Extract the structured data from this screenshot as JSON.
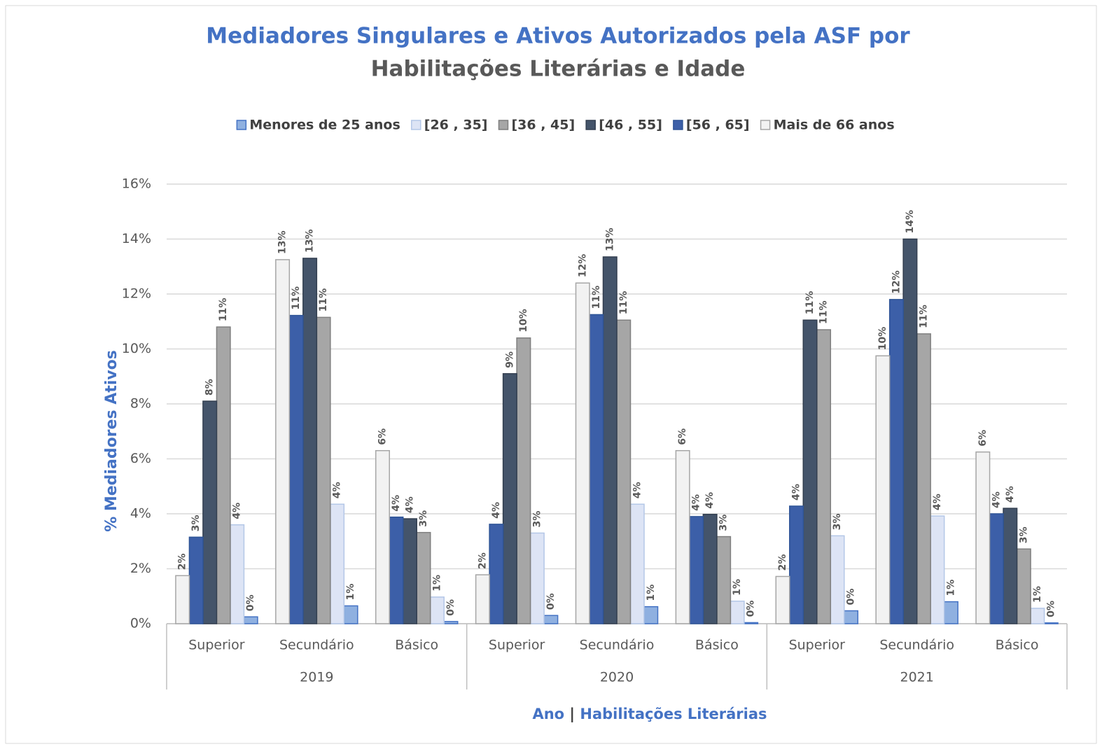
{
  "chart_data": {
    "type": "bar",
    "title": [
      "Mediadores Singulares e Ativos Autorizados pela ASF  por",
      "Habilitações Literárias e Idade"
    ],
    "y_label": "% Mediadores Ativos",
    "x_label": [
      "Ano",
      "|",
      "Habilitações Literárias"
    ],
    "categories": [
      "Superior",
      "Secundário",
      "Básico",
      "Superior",
      "Secundário",
      "Básico",
      "Superior",
      "Secundário",
      "Básico"
    ],
    "groups": [
      "2019",
      "2020",
      "2021"
    ],
    "ylim": [
      0,
      16
    ],
    "yticks": [
      {
        "value": 0,
        "label": "0%"
      },
      {
        "value": 2,
        "label": "2%"
      },
      {
        "value": 4,
        "label": "4%"
      },
      {
        "value": 6,
        "label": "6%"
      },
      {
        "value": 8,
        "label": "8%"
      },
      {
        "value": 10,
        "label": "10%"
      },
      {
        "value": 12,
        "label": "12%"
      },
      {
        "value": 14,
        "label": "14%"
      },
      {
        "value": 16,
        "label": "16%"
      }
    ],
    "grid": true,
    "legend": "top",
    "series": [
      {
        "name": "Menores de 25 anos",
        "color": "#8fb0e0",
        "edge": "#4472c4",
        "values": [
          0.25,
          0.65,
          0.08,
          0.3,
          0.62,
          0.04,
          0.47,
          0.8,
          0.03
        ],
        "value_labels": [
          "0%",
          "1%",
          "0%",
          "0%",
          "1%",
          "0%",
          "0%",
          "1%",
          "0%"
        ]
      },
      {
        "name": "[26 , 35]",
        "color": "#dde4f5",
        "edge": "#b4c7e7",
        "values": [
          3.6,
          4.35,
          0.97,
          3.3,
          4.35,
          0.82,
          3.2,
          3.92,
          0.56
        ],
        "value_labels": [
          "4%",
          "4%",
          "1%",
          "3%",
          "4%",
          "1%",
          "3%",
          "4%",
          "1%"
        ]
      },
      {
        "name": "[36 , 45]",
        "color": "#a6a6a6",
        "edge": "#7f7f7f",
        "values": [
          10.8,
          11.15,
          3.32,
          10.4,
          11.05,
          3.17,
          10.7,
          10.55,
          2.72
        ],
        "value_labels": [
          "11%",
          "11%",
          "3%",
          "10%",
          "11%",
          "3%",
          "11%",
          "11%",
          "3%"
        ]
      },
      {
        "name": "[46 , 55]",
        "color": "#44546a",
        "edge": "#333f50",
        "values": [
          8.1,
          13.3,
          3.82,
          9.1,
          13.35,
          3.98,
          11.05,
          14.0,
          4.2
        ],
        "value_labels": [
          "8%",
          "13%",
          "4%",
          "9%",
          "13%",
          "4%",
          "11%",
          "14%",
          "4%"
        ]
      },
      {
        "name": "[56 , 65]",
        "color": "#3c5fa8",
        "edge": "#2f5597",
        "values": [
          3.15,
          11.22,
          3.88,
          3.62,
          11.25,
          3.9,
          4.28,
          11.8,
          4.0
        ],
        "value_labels": [
          "3%",
          "11%",
          "4%",
          "4%",
          "11%",
          "4%",
          "4%",
          "12%",
          "4%"
        ]
      },
      {
        "name": "Mais de 66 anos",
        "color": "#f2f2f2",
        "edge": "#a6a6a6",
        "values": [
          1.75,
          13.25,
          6.3,
          1.78,
          12.4,
          6.3,
          1.72,
          9.75,
          6.25
        ],
        "value_labels": [
          "2%",
          "13%",
          "6%",
          "2%",
          "12%",
          "6%",
          "2%",
          "10%",
          "6%"
        ]
      }
    ]
  }
}
